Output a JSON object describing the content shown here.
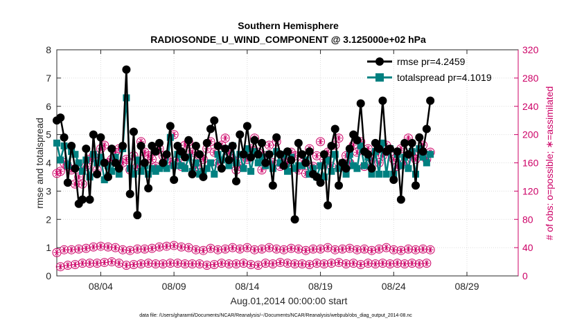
{
  "chart_data": {
    "type": "line",
    "title_line1": "Southern Hemisphere",
    "title_line2": "RADIOSONDE_U_WIND_COMPONENT @ 3.125000e+02 hPa",
    "xlabel": "Aug.01,2014 00:00:00 start",
    "ylabel_left": "rmse and totalspread",
    "ylabel_right": "# of obs: o=possible; ∗=assimilated",
    "footnote": "data file: /Users/gharamti/Documents/NCAR/Reanalysis/~/Documents/NCAR/Reanalysis/webpub/obs_diag_output_2014-08.nc",
    "xlim": [
      1,
      32.5
    ],
    "ylim_left": [
      0,
      8
    ],
    "ylim_right": [
      0,
      320
    ],
    "x_ticks": [
      {
        "x": 4,
        "label": "08/04"
      },
      {
        "x": 9,
        "label": "08/09"
      },
      {
        "x": 14,
        "label": "08/14"
      },
      {
        "x": 19,
        "label": "08/19"
      },
      {
        "x": 24,
        "label": "08/24"
      },
      {
        "x": 29,
        "label": "08/29"
      }
    ],
    "y_ticks_left": [
      "0",
      "1",
      "2",
      "3",
      "4",
      "5",
      "6",
      "7",
      "8"
    ],
    "y_ticks_right": [
      "0",
      "40",
      "80",
      "120",
      "160",
      "200",
      "240",
      "280",
      "320"
    ],
    "colors": {
      "rmse": "#000000",
      "spread": "#008080",
      "obs": "#cc0066"
    },
    "legend": [
      "rmse pr=4.2459",
      "totalspread pr=4.1019"
    ],
    "x_start": 1.0,
    "x_step": 0.25,
    "rmse": [
      5.5,
      5.6,
      4.9,
      3.3,
      4.6,
      3.8,
      2.55,
      2.7,
      4.5,
      2.7,
      5.0,
      3.6,
      4.9,
      4.0,
      3.5,
      4.5,
      4.0,
      3.8,
      4.6,
      7.3,
      2.9,
      5.1,
      2.15,
      4.6,
      4.0,
      3.1,
      4.6,
      4.4,
      4.7,
      4.0,
      4.3,
      5.3,
      3.4,
      4.6,
      4.4,
      4.2,
      4.8,
      3.6,
      4.6,
      4.3,
      3.5,
      4.7,
      5.2,
      5.5,
      4.6,
      3.8,
      4.5,
      4.1,
      4.6,
      3.35,
      5.0,
      4.3,
      5.3,
      4.2,
      4.8,
      4.3,
      4.7,
      4.0,
      4.3,
      3.2,
      4.9,
      4.3,
      3.9,
      4.4,
      4.1,
      2.0,
      4.7,
      4.3,
      4.0,
      4.4,
      3.6,
      3.5,
      3.3,
      4.3,
      2.5,
      4.6,
      5.2,
      3.2,
      4.0,
      3.8,
      4.5,
      5.0,
      4.8,
      6.1,
      4.4,
      4.3,
      3.8,
      4.7,
      4.5,
      6.2,
      4.4,
      4.5,
      3.4,
      4.4,
      2.7,
      4.7,
      4.3,
      4.7,
      3.2,
      4.9,
      4.4,
      5.2,
      6.2
    ],
    "totalspread": [
      4.7,
      4.1,
      4.6,
      3.9,
      4.4,
      4.3,
      4.0,
      3.7,
      4.1,
      3.5,
      4.3,
      4.0,
      4.2,
      3.4,
      3.9,
      3.7,
      4.2,
      3.6,
      4.5,
      6.3,
      3.8,
      3.6,
      4.1,
      3.7,
      3.9,
      3.6,
      3.8,
      3.7,
      3.8,
      3.9,
      3.8,
      4.9,
      3.9,
      4.3,
      3.9,
      3.8,
      4.2,
      3.7,
      4.0,
      3.6,
      3.7,
      3.8,
      4.0,
      3.6,
      4.3,
      4.1,
      4.5,
      3.9,
      4.6,
      4.0,
      4.3,
      3.8,
      4.5,
      3.7,
      4.4,
      4.0,
      4.2,
      3.9,
      4.3,
      3.8,
      4.4,
      4.0,
      4.3,
      3.7,
      4.2,
      3.8,
      3.9,
      3.9,
      4.1,
      3.6,
      3.8,
      3.5,
      3.9,
      3.5,
      4.1,
      3.7,
      4.3,
      3.8,
      4.0,
      3.6,
      4.3,
      3.9,
      3.8,
      4.6,
      3.9,
      4.2,
      3.6,
      4.4,
      3.6,
      4.7,
      3.6,
      4.5,
      3.6,
      4.3,
      3.9,
      4.2,
      3.8,
      4.4,
      3.6,
      4.5,
      4.2,
      4.0,
      4.3
    ],
    "obs_high": [
      145,
      148,
      160,
      155,
      150,
      130,
      140,
      130,
      155,
      165,
      170,
      150,
      180,
      185,
      160,
      165,
      175,
      180,
      160,
      165,
      150,
      170,
      155,
      190,
      175,
      170,
      165,
      155,
      180,
      170,
      165,
      160,
      200,
      165,
      155,
      185,
      190,
      175,
      155,
      170,
      165,
      180,
      190,
      175,
      160,
      185,
      195,
      175,
      165,
      150,
      155,
      170,
      165,
      180,
      195,
      175,
      150,
      170,
      185,
      160,
      190,
      155,
      165,
      160,
      175,
      170,
      150,
      160,
      145,
      180,
      155,
      170,
      190,
      165,
      175,
      155,
      185,
      195,
      155,
      170,
      160,
      185,
      175,
      190,
      155,
      180,
      165,
      175,
      160,
      170,
      185,
      175,
      165,
      155,
      180,
      160,
      195,
      170,
      165,
      175,
      185,
      165,
      175
    ],
    "obs_low": [
      33,
      13,
      37,
      15,
      37,
      16,
      38,
      18,
      39,
      18,
      41,
      18,
      42,
      19,
      41,
      20,
      40,
      18,
      37,
      15,
      36,
      16,
      38,
      17,
      38,
      18,
      39,
      17,
      41,
      17,
      42,
      18,
      43,
      18,
      41,
      17,
      40,
      17,
      37,
      17,
      36,
      15,
      39,
      16,
      37,
      18,
      38,
      17,
      40,
      17,
      38,
      18,
      40,
      16,
      37,
      15,
      38,
      18,
      40,
      17,
      38,
      19,
      37,
      18,
      39,
      17,
      38,
      17,
      36,
      16,
      38,
      18,
      38,
      17,
      40,
      18,
      37,
      19,
      38,
      17,
      39,
      18,
      37,
      16,
      38,
      18,
      36,
      17,
      38,
      18,
      40,
      17,
      37,
      18,
      36,
      17,
      38,
      18,
      37,
      17,
      38,
      18,
      37
    ]
  }
}
